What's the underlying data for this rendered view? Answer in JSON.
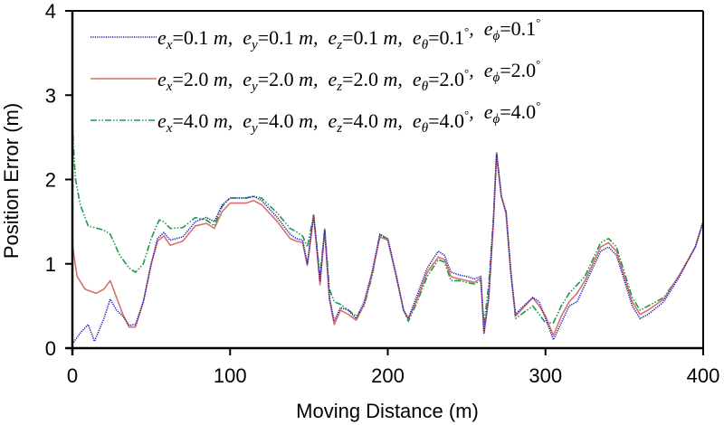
{
  "chart_data": {
    "type": "line",
    "xlabel": "Moving Distance (m)",
    "ylabel": "Position Error (m)",
    "xlim": [
      0,
      400
    ],
    "ylim": [
      0,
      4
    ],
    "xticks": [
      "0",
      "100",
      "200",
      "300",
      "400"
    ],
    "yticks": [
      "0",
      "1",
      "2",
      "3",
      "4"
    ],
    "grid": false,
    "legend_position": "top",
    "series": [
      {
        "name": "e_x=0.1 m, e_y=0.1 m, e_z=0.1 m, e_θ=0.1°, e_ϕ=0.1°",
        "terms": [
          {
            "sym": "e",
            "sub": "x",
            "val": "=0.1",
            "unit": "m",
            "sep": ","
          },
          {
            "sym": "e",
            "sub": "y",
            "val": "=0.1",
            "unit": "m",
            "sep": ","
          },
          {
            "sym": "e",
            "sub": "z",
            "val": "=0.1",
            "unit": "m",
            "sep": ","
          },
          {
            "sym": "e",
            "sub": "θ",
            "val": "=0.1",
            "unit": "°",
            "sep": ","
          },
          {
            "sym": "e",
            "sub": "ϕ",
            "val": "=0.1",
            "unit": "°",
            "sep": ""
          }
        ],
        "color": "#1a1ab4",
        "style": "dotted",
        "x": [
          0,
          5,
          10,
          14,
          20,
          24,
          28,
          32,
          36,
          40,
          45,
          50,
          54,
          58,
          62,
          70,
          78,
          85,
          90,
          95,
          100,
          110,
          115,
          120,
          130,
          138,
          142,
          146,
          149,
          153,
          157,
          160,
          163,
          166,
          170,
          175,
          180,
          185,
          190,
          195,
          200,
          205,
          210,
          213,
          218,
          225,
          232,
          236,
          240,
          245,
          250,
          255,
          259,
          261,
          264,
          267,
          269,
          272,
          275,
          278,
          281,
          286,
          292,
          296,
          300,
          305,
          310,
          315,
          320,
          325,
          330,
          335,
          340,
          345,
          350,
          355,
          360,
          365,
          375,
          385,
          395,
          400
        ],
        "y": [
          0.05,
          0.18,
          0.28,
          0.08,
          0.35,
          0.58,
          0.45,
          0.38,
          0.27,
          0.28,
          0.55,
          1.0,
          1.3,
          1.37,
          1.28,
          1.32,
          1.5,
          1.55,
          1.5,
          1.7,
          1.78,
          1.78,
          1.8,
          1.75,
          1.55,
          1.35,
          1.3,
          1.28,
          1.0,
          1.58,
          0.8,
          1.4,
          0.6,
          0.32,
          0.48,
          0.45,
          0.35,
          0.55,
          0.9,
          1.35,
          1.3,
          0.9,
          0.45,
          0.35,
          0.6,
          0.95,
          1.15,
          1.1,
          0.9,
          0.87,
          0.85,
          0.82,
          0.85,
          0.18,
          0.6,
          1.5,
          2.3,
          1.8,
          1.6,
          0.9,
          0.4,
          0.5,
          0.6,
          0.55,
          0.35,
          0.1,
          0.3,
          0.5,
          0.55,
          0.75,
          0.95,
          1.15,
          1.2,
          1.1,
          0.8,
          0.5,
          0.35,
          0.4,
          0.55,
          0.85,
          1.2,
          1.5
        ]
      },
      {
        "name": "e_x=2.0 m, e_y=2.0 m, e_z=2.0 m, e_θ=2.0°, e_ϕ=2.0°",
        "terms": [
          {
            "sym": "e",
            "sub": "x",
            "val": "=2.0",
            "unit": "m",
            "sep": ","
          },
          {
            "sym": "e",
            "sub": "y",
            "val": "=2.0",
            "unit": "m",
            "sep": ","
          },
          {
            "sym": "e",
            "sub": "z",
            "val": "=2.0",
            "unit": "m",
            "sep": ","
          },
          {
            "sym": "e",
            "sub": "θ",
            "val": "=2.0",
            "unit": "°",
            "sep": ","
          },
          {
            "sym": "e",
            "sub": "ϕ",
            "val": "=2.0",
            "unit": "°",
            "sep": ""
          }
        ],
        "color": "#d9706e",
        "style": "solid",
        "x": [
          0,
          1,
          3,
          8,
          15,
          20,
          24,
          28,
          32,
          36,
          40,
          45,
          50,
          54,
          58,
          62,
          70,
          78,
          85,
          90,
          95,
          100,
          110,
          115,
          120,
          130,
          138,
          142,
          146,
          149,
          153,
          157,
          160,
          163,
          166,
          170,
          175,
          180,
          185,
          190,
          195,
          200,
          205,
          210,
          213,
          218,
          225,
          232,
          236,
          240,
          245,
          250,
          255,
          259,
          261,
          264,
          267,
          269,
          272,
          275,
          278,
          281,
          286,
          292,
          296,
          300,
          305,
          310,
          315,
          320,
          325,
          330,
          335,
          340,
          345,
          350,
          355,
          360,
          365,
          375,
          385,
          395,
          400
        ],
        "y": [
          1.25,
          1.1,
          0.85,
          0.7,
          0.65,
          0.7,
          0.8,
          0.6,
          0.4,
          0.25,
          0.25,
          0.55,
          1.0,
          1.27,
          1.33,
          1.22,
          1.27,
          1.45,
          1.48,
          1.42,
          1.62,
          1.72,
          1.72,
          1.75,
          1.7,
          1.5,
          1.3,
          1.27,
          1.25,
          0.98,
          1.58,
          0.75,
          1.4,
          0.58,
          0.28,
          0.45,
          0.4,
          0.33,
          0.52,
          0.88,
          1.32,
          1.28,
          0.88,
          0.45,
          0.35,
          0.55,
          0.9,
          1.08,
          1.05,
          0.85,
          0.82,
          0.8,
          0.78,
          0.83,
          0.18,
          0.6,
          1.5,
          2.3,
          1.8,
          1.6,
          0.9,
          0.38,
          0.48,
          0.6,
          0.5,
          0.38,
          0.15,
          0.38,
          0.55,
          0.65,
          0.8,
          1.0,
          1.2,
          1.25,
          1.15,
          0.85,
          0.55,
          0.4,
          0.45,
          0.58,
          0.87,
          1.2,
          1.5
        ]
      },
      {
        "name": "e_x=4.0 m, e_y=4.0 m, e_z=4.0 m, e_θ=4.0°, e_ϕ=4.0°",
        "terms": [
          {
            "sym": "e",
            "sub": "x",
            "val": "=4.0",
            "unit": "m",
            "sep": ","
          },
          {
            "sym": "e",
            "sub": "y",
            "val": "=4.0",
            "unit": "m",
            "sep": ","
          },
          {
            "sym": "e",
            "sub": "z",
            "val": "=4.0",
            "unit": "m",
            "sep": ","
          },
          {
            "sym": "e",
            "sub": "θ",
            "val": "=4.0",
            "unit": "°",
            "sep": ","
          },
          {
            "sym": "e",
            "sub": "ϕ",
            "val": "=4.0",
            "unit": "°",
            "sep": ""
          }
        ],
        "color": "#1a9a4a",
        "style": "dashdot",
        "x": [
          0,
          1,
          2,
          5,
          10,
          20,
          24,
          30,
          36,
          40,
          45,
          50,
          55,
          58,
          62,
          70,
          78,
          85,
          90,
          95,
          100,
          110,
          115,
          120,
          130,
          138,
          142,
          146,
          149,
          153,
          157,
          160,
          163,
          166,
          170,
          175,
          180,
          185,
          190,
          195,
          200,
          205,
          210,
          213,
          218,
          225,
          232,
          236,
          240,
          245,
          250,
          255,
          259,
          261,
          264,
          267,
          269,
          272,
          275,
          278,
          281,
          286,
          292,
          296,
          300,
          305,
          310,
          315,
          320,
          325,
          330,
          335,
          340,
          345,
          350,
          355,
          360,
          365,
          375,
          385,
          395,
          400
        ],
        "y": [
          2.7,
          2.3,
          2.0,
          1.7,
          1.45,
          1.4,
          1.35,
          1.1,
          0.95,
          0.9,
          1.0,
          1.3,
          1.52,
          1.5,
          1.42,
          1.43,
          1.55,
          1.52,
          1.45,
          1.68,
          1.78,
          1.78,
          1.8,
          1.78,
          1.6,
          1.42,
          1.38,
          1.33,
          1.2,
          1.58,
          0.85,
          1.42,
          0.7,
          0.55,
          0.52,
          0.45,
          0.38,
          0.5,
          0.85,
          1.35,
          1.28,
          0.88,
          0.45,
          0.32,
          0.52,
          0.85,
          1.05,
          1.02,
          0.8,
          0.8,
          0.78,
          0.76,
          0.8,
          0.28,
          0.75,
          1.55,
          2.33,
          1.8,
          1.62,
          0.92,
          0.35,
          0.42,
          0.5,
          0.4,
          0.3,
          0.3,
          0.5,
          0.65,
          0.75,
          0.85,
          1.05,
          1.25,
          1.3,
          1.2,
          0.9,
          0.6,
          0.45,
          0.5,
          0.6,
          0.87,
          1.2,
          1.5
        ]
      }
    ]
  }
}
